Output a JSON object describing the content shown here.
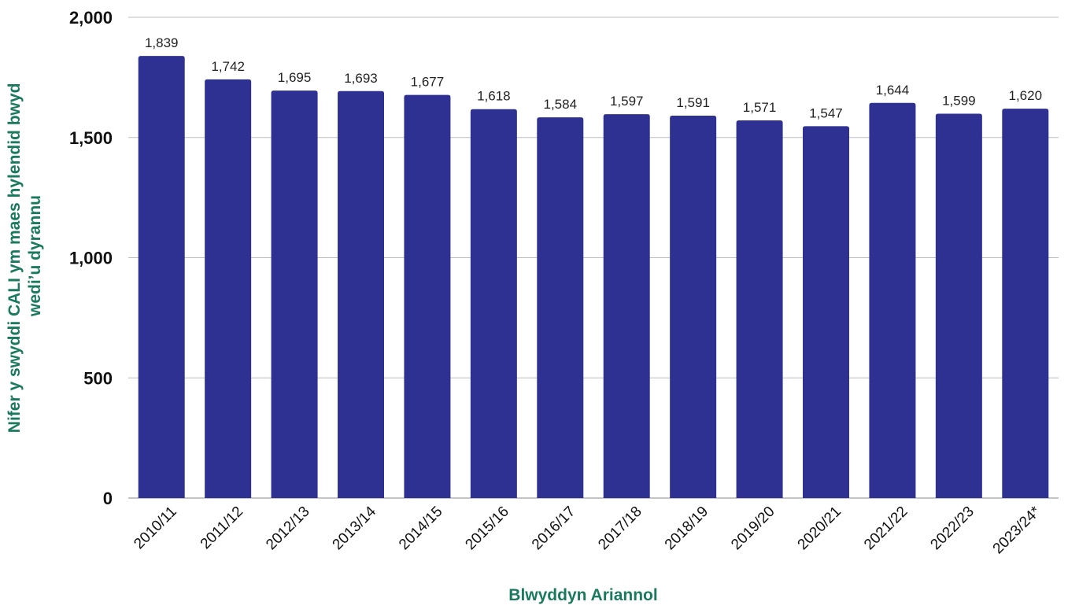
{
  "chart_data": {
    "type": "bar",
    "categories": [
      "2010/11",
      "2011/12",
      "2012/13",
      "2013/14",
      "2014/15",
      "2015/16",
      "2016/17",
      "2017/18",
      "2018/19",
      "2019/20",
      "2020/21",
      "2021/22",
      "2022/23",
      "2023/24*"
    ],
    "values": [
      1839,
      1742,
      1695,
      1693,
      1677,
      1618,
      1584,
      1597,
      1591,
      1571,
      1547,
      1644,
      1599,
      1620
    ],
    "data_labels": [
      "1,839",
      "1,742",
      "1,695",
      "1,693",
      "1,677",
      "1,618",
      "1,584",
      "1,597",
      "1,591",
      "1,571",
      "1,547",
      "1,644",
      "1,599",
      "1,620"
    ],
    "title": "",
    "xlabel": "Blwyddyn Ariannol",
    "ylabel_lines": [
      "Nifer y swyddi CALI ym maes hylendid bwyd",
      "wedi’u dyrannu"
    ],
    "ylim": [
      0,
      2000
    ],
    "yticks": [
      0,
      500,
      1000,
      1500,
      2000
    ],
    "ytick_labels": [
      "0",
      "500",
      "1,000",
      "1,500",
      "2,000"
    ],
    "grid": true,
    "legend": "none",
    "colors": {
      "bar": "#2e3192",
      "axis_title": "#1a7a5e",
      "grid": "#bdbdbd"
    }
  }
}
